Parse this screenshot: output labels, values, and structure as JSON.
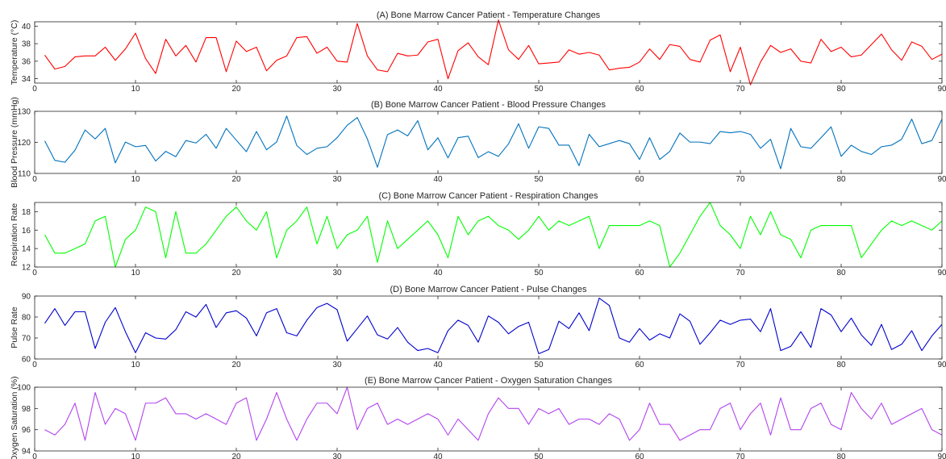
{
  "chart_data": [
    {
      "type": "line",
      "title": "(A) Bone Marrow Cancer Patient - Temperature Changes",
      "xlabel": "",
      "ylabel": "Temperature (°C)",
      "xlim": [
        0,
        90
      ],
      "ylim": [
        33.5,
        40.5
      ],
      "xticks": [
        0,
        10,
        20,
        30,
        40,
        50,
        60,
        70,
        80,
        90
      ],
      "yticks": [
        34,
        36,
        38,
        40
      ],
      "color": "#ff0000",
      "x": [
        1,
        2,
        3,
        4,
        5,
        6,
        7,
        8,
        9,
        10,
        11,
        12,
        13,
        14,
        15,
        16,
        17,
        18,
        19,
        20,
        21,
        22,
        23,
        24,
        25,
        26,
        27,
        28,
        29,
        30,
        31,
        32,
        33,
        34,
        35,
        36,
        37,
        38,
        39,
        40,
        41,
        42,
        43,
        44,
        45,
        46,
        47,
        48,
        49,
        50,
        51,
        52,
        53,
        54,
        55,
        56,
        57,
        58,
        59,
        60,
        61,
        62,
        63,
        64,
        65,
        66,
        67,
        68,
        69,
        70,
        71,
        72,
        73,
        74,
        75,
        76,
        77,
        78,
        79,
        80,
        81,
        82,
        83,
        84,
        85,
        86,
        87,
        88,
        89,
        90
      ],
      "values": [
        36.7,
        35.1,
        35.4,
        36.5,
        36.6,
        36.6,
        37.6,
        36.1,
        37.4,
        39.2,
        36.3,
        34.6,
        38.5,
        36.6,
        37.8,
        35.9,
        38.7,
        38.7,
        34.8,
        38.3,
        37.1,
        37.6,
        34.9,
        36.1,
        36.6,
        38.7,
        38.8,
        36.9,
        37.6,
        36.0,
        35.9,
        40.3,
        36.6,
        35.0,
        34.8,
        36.9,
        36.6,
        36.7,
        38.2,
        38.5,
        34.0,
        37.2,
        38.1,
        36.5,
        35.6,
        40.7,
        37.3,
        36.2,
        37.8,
        35.7,
        35.8,
        35.9,
        37.3,
        36.8,
        37.0,
        36.7,
        35.0,
        35.2,
        35.3,
        35.9,
        37.4,
        36.2,
        37.9,
        37.7,
        36.2,
        35.9,
        38.4,
        39.0,
        34.8,
        37.6,
        33.3,
        35.9,
        37.8,
        37.0,
        37.4,
        36.0,
        35.8,
        38.5,
        37.1,
        37.6,
        36.5,
        36.7,
        37.9,
        39.1,
        37.3,
        36.1,
        38.2,
        37.7,
        36.2,
        36.8
      ]
    },
    {
      "type": "line",
      "title": "(B) Bone Marrow Cancer Patient - Blood Pressure Changes",
      "xlabel": "",
      "ylabel": "Blood Pressure (mmHg)",
      "xlim": [
        0,
        90
      ],
      "ylim": [
        110,
        130
      ],
      "xticks": [
        0,
        10,
        20,
        30,
        40,
        50,
        60,
        70,
        80,
        90
      ],
      "yticks": [
        110,
        120,
        130
      ],
      "color": "#0072bd",
      "x": [
        1,
        2,
        3,
        4,
        5,
        6,
        7,
        8,
        9,
        10,
        11,
        12,
        13,
        14,
        15,
        16,
        17,
        18,
        19,
        20,
        21,
        22,
        23,
        24,
        25,
        26,
        27,
        28,
        29,
        30,
        31,
        32,
        33,
        34,
        35,
        36,
        37,
        38,
        39,
        40,
        41,
        42,
        43,
        44,
        45,
        46,
        47,
        48,
        49,
        50,
        51,
        52,
        53,
        54,
        55,
        56,
        57,
        58,
        59,
        60,
        61,
        62,
        63,
        64,
        65,
        66,
        67,
        68,
        69,
        70,
        71,
        72,
        73,
        74,
        75,
        76,
        77,
        78,
        79,
        80,
        81,
        82,
        83,
        84,
        85,
        86,
        87,
        88,
        89,
        90
      ],
      "values": [
        120.5,
        114.2,
        113.6,
        117.5,
        124.0,
        121.1,
        124.5,
        113.4,
        120.1,
        118.6,
        119.0,
        114.0,
        117.1,
        115.4,
        120.6,
        119.8,
        122.6,
        118.1,
        124.5,
        120.7,
        117.0,
        123.5,
        117.6,
        120.1,
        128.5,
        119.0,
        116.1,
        118.1,
        118.6,
        121.5,
        125.5,
        128.0,
        121.1,
        112.0,
        122.5,
        124.0,
        122.1,
        127.0,
        117.6,
        121.5,
        115.0,
        121.5,
        122.0,
        115.1,
        117.0,
        115.5,
        119.5,
        126.0,
        118.1,
        125.0,
        124.5,
        119.1,
        119.1,
        112.5,
        122.6,
        118.6,
        119.6,
        120.6,
        119.6,
        114.5,
        121.5,
        114.5,
        117.1,
        123.0,
        120.1,
        120.1,
        119.6,
        123.5,
        123.1,
        123.5,
        122.6,
        118.1,
        121.0,
        111.5,
        124.5,
        118.6,
        118.1,
        121.5,
        125.0,
        115.5,
        119.1,
        117.1,
        116.1,
        118.6,
        119.1,
        121.0,
        127.5,
        119.6,
        120.6,
        127.5
      ]
    },
    {
      "type": "line",
      "title": "(C) Bone Marrow Cancer Patient - Respiration Changes",
      "xlabel": "",
      "ylabel": "Respiration Rate",
      "xlim": [
        0,
        90
      ],
      "ylim": [
        12,
        19
      ],
      "xticks": [
        0,
        10,
        20,
        30,
        40,
        50,
        60,
        70,
        80,
        90
      ],
      "yticks": [
        12,
        14,
        16,
        18
      ],
      "color": "#00ff00",
      "x": [
        1,
        2,
        3,
        4,
        5,
        6,
        7,
        8,
        9,
        10,
        11,
        12,
        13,
        14,
        15,
        16,
        17,
        18,
        19,
        20,
        21,
        22,
        23,
        24,
        25,
        26,
        27,
        28,
        29,
        30,
        31,
        32,
        33,
        34,
        35,
        36,
        37,
        38,
        39,
        40,
        41,
        42,
        43,
        44,
        45,
        46,
        47,
        48,
        49,
        50,
        51,
        52,
        53,
        54,
        55,
        56,
        57,
        58,
        59,
        60,
        61,
        62,
        63,
        64,
        65,
        66,
        67,
        68,
        69,
        70,
        71,
        72,
        73,
        74,
        75,
        76,
        77,
        78,
        79,
        80,
        81,
        82,
        83,
        84,
        85,
        86,
        87,
        88,
        89,
        90
      ],
      "values": [
        15.5,
        13.5,
        13.5,
        14.0,
        14.5,
        17.0,
        17.5,
        12.0,
        15.0,
        16.0,
        18.5,
        18.0,
        13.0,
        18.0,
        13.5,
        13.5,
        14.5,
        16.0,
        17.5,
        18.5,
        17.0,
        16.0,
        18.0,
        13.0,
        16.0,
        17.0,
        18.5,
        14.5,
        17.5,
        14.0,
        15.5,
        16.0,
        17.5,
        12.5,
        17.0,
        14.0,
        15.0,
        16.0,
        17.0,
        15.5,
        13.0,
        17.5,
        15.5,
        17.0,
        17.5,
        16.5,
        16.0,
        15.0,
        16.0,
        17.5,
        16.0,
        17.0,
        16.5,
        17.0,
        17.5,
        14.0,
        16.5,
        16.5,
        16.5,
        16.5,
        17.0,
        16.5,
        12.0,
        13.5,
        15.5,
        17.5,
        19.0,
        16.5,
        15.5,
        14.0,
        17.5,
        15.5,
        18.0,
        15.5,
        15.0,
        13.0,
        16.0,
        16.5,
        16.5,
        16.5,
        16.5,
        13.0,
        14.5,
        16.0,
        17.0,
        16.5,
        17.0,
        16.5,
        16.0,
        17.0
      ]
    },
    {
      "type": "line",
      "title": "(D) Bone Marrow Cancer Patient - Pulse Changes",
      "xlabel": "",
      "ylabel": "Pulse Rate",
      "xlim": [
        0,
        90
      ],
      "ylim": [
        60,
        90
      ],
      "xticks": [
        0,
        10,
        20,
        30,
        40,
        50,
        60,
        70,
        80,
        90
      ],
      "yticks": [
        60,
        70,
        80,
        90
      ],
      "color": "#0000cd",
      "x": [
        1,
        2,
        3,
        4,
        5,
        6,
        7,
        8,
        9,
        10,
        11,
        12,
        13,
        14,
        15,
        16,
        17,
        18,
        19,
        20,
        21,
        22,
        23,
        24,
        25,
        26,
        27,
        28,
        29,
        30,
        31,
        32,
        33,
        34,
        35,
        36,
        37,
        38,
        39,
        40,
        41,
        42,
        43,
        44,
        45,
        46,
        47,
        48,
        49,
        50,
        51,
        52,
        53,
        54,
        55,
        56,
        57,
        58,
        59,
        60,
        61,
        62,
        63,
        64,
        65,
        66,
        67,
        68,
        69,
        70,
        71,
        72,
        73,
        74,
        75,
        76,
        77,
        78,
        79,
        80,
        81,
        82,
        83,
        84,
        85,
        86,
        87,
        88,
        89,
        90
      ],
      "values": [
        77,
        84,
        76,
        82.5,
        82.5,
        65,
        77.5,
        84.5,
        73,
        63,
        72.5,
        70,
        69.5,
        74,
        82.5,
        80,
        86,
        75,
        82,
        83,
        79.5,
        71,
        82,
        84,
        72.5,
        71,
        78.5,
        84.5,
        86.5,
        83.5,
        68.5,
        74.5,
        80.5,
        71.5,
        69.5,
        75,
        68,
        64,
        65,
        63,
        73.5,
        78.5,
        76,
        68,
        80.5,
        77.5,
        72,
        75.5,
        77.5,
        62.5,
        64.5,
        78,
        74.5,
        82,
        73.5,
        89,
        85.5,
        70,
        68,
        74.5,
        69,
        72,
        70,
        81.5,
        78,
        67,
        72.5,
        78.5,
        76.5,
        78.5,
        79,
        73,
        84,
        64,
        66,
        73,
        65.5,
        84,
        81,
        73,
        79.5,
        71.5,
        66.5,
        76.5,
        64.5,
        67,
        73.5,
        64,
        71,
        76.5
      ]
    },
    {
      "type": "line",
      "title": "(E) Bone Marrow Cancer Patient - Oxygen Saturation Changes",
      "xlabel": "",
      "ylabel": "Oxygen Saturation (%)",
      "xlim": [
        0,
        90
      ],
      "ylim": [
        94,
        100
      ],
      "xticks": [
        0,
        10,
        20,
        30,
        40,
        50,
        60,
        70,
        80,
        90
      ],
      "yticks": [
        94,
        96,
        98,
        100
      ],
      "color": "#b344ee",
      "x": [
        1,
        2,
        3,
        4,
        5,
        6,
        7,
        8,
        9,
        10,
        11,
        12,
        13,
        14,
        15,
        16,
        17,
        18,
        19,
        20,
        21,
        22,
        23,
        24,
        25,
        26,
        27,
        28,
        29,
        30,
        31,
        32,
        33,
        34,
        35,
        36,
        37,
        38,
        39,
        40,
        41,
        42,
        43,
        44,
        45,
        46,
        47,
        48,
        49,
        50,
        51,
        52,
        53,
        54,
        55,
        56,
        57,
        58,
        59,
        60,
        61,
        62,
        63,
        64,
        65,
        66,
        67,
        68,
        69,
        70,
        71,
        72,
        73,
        74,
        75,
        76,
        77,
        78,
        79,
        80,
        81,
        82,
        83,
        84,
        85,
        86,
        87,
        88,
        89,
        90
      ],
      "values": [
        96.0,
        95.5,
        96.5,
        98.5,
        95.0,
        99.5,
        96.5,
        98.0,
        97.5,
        95.0,
        98.5,
        98.5,
        99.0,
        97.5,
        97.5,
        97.0,
        97.5,
        97.0,
        96.5,
        98.5,
        99.0,
        95.0,
        97.0,
        99.5,
        97.0,
        95.0,
        97.0,
        98.5,
        98.5,
        97.5,
        100.0,
        96.0,
        98.0,
        98.5,
        96.5,
        97.0,
        96.5,
        97.0,
        97.5,
        97.0,
        95.5,
        97.0,
        96.0,
        95.0,
        97.5,
        99.0,
        98.0,
        98.0,
        96.5,
        98.0,
        97.5,
        98.0,
        96.5,
        97.0,
        97.0,
        96.5,
        97.5,
        97.0,
        95.0,
        96.0,
        98.5,
        96.5,
        96.5,
        95.0,
        95.5,
        96.0,
        96.0,
        98.0,
        98.5,
        96.0,
        97.5,
        98.5,
        95.5,
        99.0,
        96.0,
        96.0,
        98.0,
        98.5,
        96.5,
        96.0,
        99.5,
        98.0,
        97.0,
        98.5,
        96.5,
        97.0,
        97.5,
        98.0,
        96.0,
        95.5
      ]
    }
  ]
}
